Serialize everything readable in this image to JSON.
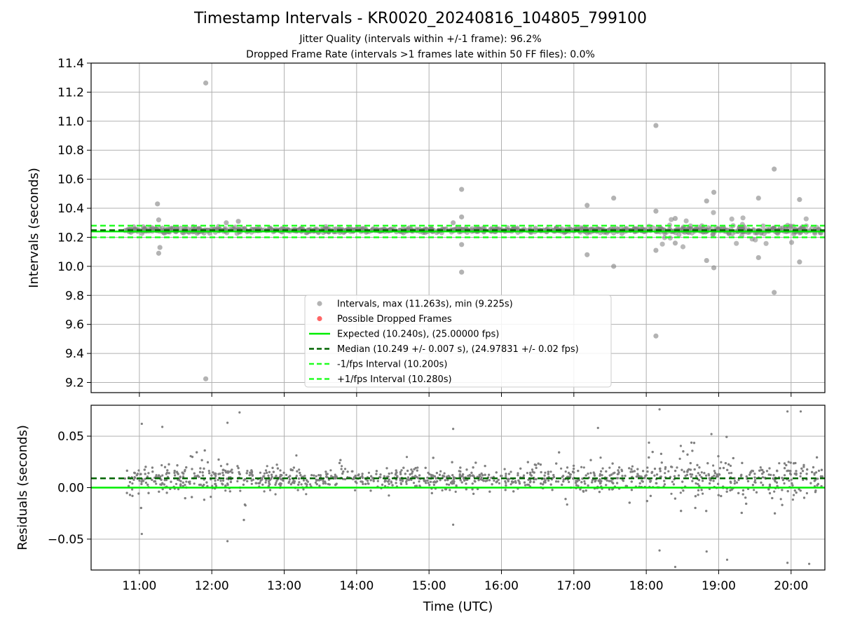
{
  "title": "Timestamp Intervals - KR0020_20240816_104805_799100",
  "subtitle_1": "Jitter Quality (intervals within +/-1 frame): 96.2%",
  "subtitle_2": "Dropped Frame Rate (intervals >1 frames late within 50 FF files): 0.0%",
  "colors": {
    "points": "#808080",
    "dropped": "#ff0000",
    "expected": "#00ee00",
    "median": "#006400",
    "interval_lines": "#22ff22",
    "grid": "#b0b0b0"
  },
  "chart_data": [
    {
      "type": "scatter",
      "panel": "top",
      "ylabel": "Intervals (seconds)",
      "ylim": [
        9.13,
        11.4
      ],
      "yticks": [
        "9.2",
        "9.4",
        "9.6",
        "9.8",
        "10.0",
        "10.2",
        "10.4",
        "10.6",
        "10.8",
        "11.0",
        "11.2",
        "11.4"
      ],
      "xticks": [
        "11:00",
        "12:00",
        "13:00",
        "14:00",
        "15:00",
        "16:00",
        "17:00",
        "18:00",
        "19:00",
        "20:00"
      ],
      "xlim": [
        "10:20",
        "20:28"
      ],
      "grid": true,
      "legend_position": "lower-center",
      "reference_lines": [
        {
          "name": "Expected (10.240s), (25.00000 fps)",
          "y": 10.24,
          "style": "solid"
        },
        {
          "name": "Median (10.249 +/- 0.007 s), (24.97831 +/- 0.02 fps)",
          "y": 10.249,
          "style": "dashed"
        },
        {
          "name": "-1/fps Interval (10.200s)",
          "y": 10.2,
          "style": "dashed"
        },
        {
          "name": "+1/fps Interval (10.280s)",
          "y": 10.28,
          "style": "dashed"
        }
      ],
      "series": [
        {
          "name": "Intervals, max (11.263s), min (9.225s)",
          "marker": "circle"
        },
        {
          "name": "Possible Dropped Frames",
          "marker": "circle",
          "points": []
        }
      ],
      "outliers": [
        {
          "x": "11:15",
          "y": 10.43
        },
        {
          "x": "11:16",
          "y": 10.32
        },
        {
          "x": "11:17",
          "y": 10.13
        },
        {
          "x": "11:16",
          "y": 10.09
        },
        {
          "x": "11:55",
          "y": 11.263
        },
        {
          "x": "11:55",
          "y": 9.225
        },
        {
          "x": "12:12",
          "y": 10.3
        },
        {
          "x": "12:22",
          "y": 10.31
        },
        {
          "x": "15:20",
          "y": 10.3
        },
        {
          "x": "15:27",
          "y": 10.53
        },
        {
          "x": "15:27",
          "y": 10.34
        },
        {
          "x": "15:27",
          "y": 10.15
        },
        {
          "x": "15:27",
          "y": 9.96
        },
        {
          "x": "17:11",
          "y": 10.42
        },
        {
          "x": "17:11",
          "y": 10.08
        },
        {
          "x": "17:33",
          "y": 10.47
        },
        {
          "x": "17:33",
          "y": 10.0
        },
        {
          "x": "18:08",
          "y": 10.97
        },
        {
          "x": "18:08",
          "y": 9.52
        },
        {
          "x": "18:08",
          "y": 10.38
        },
        {
          "x": "18:08",
          "y": 10.11
        },
        {
          "x": "18:24",
          "y": 10.33
        },
        {
          "x": "18:24",
          "y": 10.16
        },
        {
          "x": "18:50",
          "y": 10.45
        },
        {
          "x": "18:50",
          "y": 10.04
        },
        {
          "x": "18:56",
          "y": 10.51
        },
        {
          "x": "18:56",
          "y": 9.99
        },
        {
          "x": "19:33",
          "y": 10.47
        },
        {
          "x": "19:33",
          "y": 10.06
        },
        {
          "x": "19:46",
          "y": 10.67
        },
        {
          "x": "19:46",
          "y": 9.82
        },
        {
          "x": "20:07",
          "y": 10.46
        },
        {
          "x": "20:07",
          "y": 10.03
        }
      ]
    },
    {
      "type": "scatter",
      "panel": "bottom",
      "xlabel": "Time (UTC)",
      "ylabel": "Residuals (seconds)",
      "ylim": [
        -0.08,
        0.08
      ],
      "yticks": [
        "−0.05",
        "0.00",
        "0.05"
      ],
      "xticks": [
        "11:00",
        "12:00",
        "13:00",
        "14:00",
        "15:00",
        "16:00",
        "17:00",
        "18:00",
        "19:00",
        "20:00"
      ],
      "xlim": [
        "10:20",
        "20:28"
      ],
      "grid": true,
      "reference_lines": [
        {
          "y": 0.0,
          "style": "solid"
        },
        {
          "y": 0.009,
          "style": "dashed"
        }
      ],
      "outliers": [
        {
          "x": "11:02",
          "y": 0.062
        },
        {
          "x": "11:02",
          "y": -0.045
        },
        {
          "x": "11:19",
          "y": 0.059
        },
        {
          "x": "12:13",
          "y": 0.063
        },
        {
          "x": "12:13",
          "y": -0.052
        },
        {
          "x": "12:23",
          "y": 0.073
        },
        {
          "x": "15:20",
          "y": 0.057
        },
        {
          "x": "15:20",
          "y": -0.036
        },
        {
          "x": "17:20",
          "y": 0.058
        },
        {
          "x": "18:11",
          "y": 0.076
        },
        {
          "x": "18:11",
          "y": -0.061
        },
        {
          "x": "18:24",
          "y": -0.077
        },
        {
          "x": "18:50",
          "y": -0.062
        },
        {
          "x": "18:54",
          "y": 0.052
        },
        {
          "x": "19:07",
          "y": -0.07
        },
        {
          "x": "19:57",
          "y": 0.074
        },
        {
          "x": "19:57",
          "y": -0.073
        },
        {
          "x": "20:08",
          "y": 0.074
        },
        {
          "x": "20:15",
          "y": -0.074
        }
      ]
    }
  ]
}
